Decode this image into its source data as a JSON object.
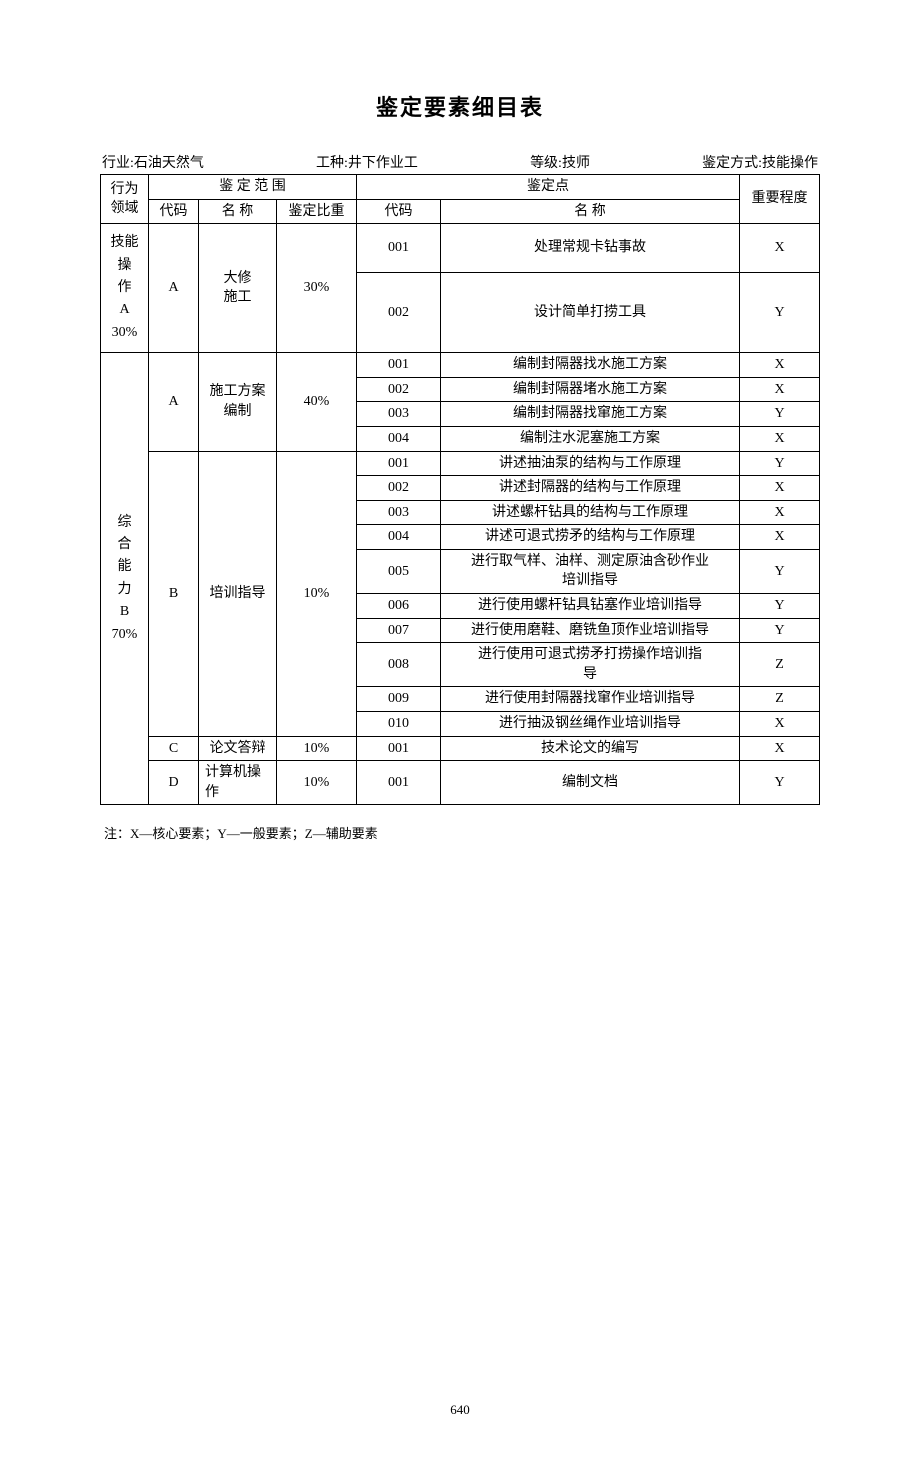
{
  "title": "鉴定要素细目表",
  "meta": {
    "industry_label": "行业:石油天然气",
    "job_label": "工种:井下作业工",
    "level_label": "等级:技师",
    "method_label": "鉴定方式:技能操作"
  },
  "headers": {
    "domain": "行为\n领域",
    "scope": "鉴 定 范 围",
    "code": "代码",
    "name": "名 称",
    "weight": "鉴定比重",
    "point": "鉴定点",
    "point_code": "代码",
    "point_name": "名  称",
    "priority": "重要程度"
  },
  "domain_a": {
    "label": "技能操\n作\nA\n30%",
    "section": {
      "code": "A",
      "name": "大修\n施工",
      "weight": "30%",
      "rows": [
        {
          "code": "001",
          "name": "处理常规卡钻事故",
          "priority": "X"
        },
        {
          "code": "002",
          "name": "设计简单打捞工具",
          "priority": "Y"
        }
      ]
    }
  },
  "domain_b": {
    "label": "综\n合\n能\n力\nB\n70%",
    "sections": [
      {
        "code": "A",
        "name": "施工方案\n编制",
        "weight": "40%",
        "rows": [
          {
            "code": "001",
            "name": "编制封隔器找水施工方案",
            "priority": "X"
          },
          {
            "code": "002",
            "name": "编制封隔器堵水施工方案",
            "priority": "X"
          },
          {
            "code": "003",
            "name": "编制封隔器找窜施工方案",
            "priority": "Y"
          },
          {
            "code": "004",
            "name": "编制注水泥塞施工方案",
            "priority": "X"
          }
        ]
      },
      {
        "code": "B",
        "name": "培训指导",
        "weight": "10%",
        "rows": [
          {
            "code": "001",
            "name": "讲述抽油泵的结构与工作原理",
            "priority": "Y"
          },
          {
            "code": "002",
            "name": "讲述封隔器的结构与工作原理",
            "priority": "X"
          },
          {
            "code": "003",
            "name": "讲述螺杆钻具的结构与工作原理",
            "priority": "X"
          },
          {
            "code": "004",
            "name": "讲述可退式捞矛的结构与工作原理",
            "priority": "X"
          },
          {
            "code": "005",
            "name": "进行取气样、油样、测定原油含砂作业\n培训指导",
            "priority": "Y"
          },
          {
            "code": "006",
            "name": "进行使用螺杆钻具钻塞作业培训指导",
            "priority": "Y"
          },
          {
            "code": "007",
            "name": "进行使用磨鞋、磨铣鱼顶作业培训指导",
            "priority": "Y"
          },
          {
            "code": "008",
            "name": "进行使用可退式捞矛打捞操作培训指\n导",
            "priority": "Z"
          },
          {
            "code": "009",
            "name": "进行使用封隔器找窜作业培训指导",
            "priority": "Z"
          },
          {
            "code": "010",
            "name": "进行抽汲钢丝绳作业培训指导",
            "priority": "X"
          }
        ]
      },
      {
        "code": "C",
        "name": "论文答辩",
        "weight": "10%",
        "rows": [
          {
            "code": "001",
            "name": "技术论文的编写",
            "priority": "X"
          }
        ]
      },
      {
        "code": "D",
        "name": "计算机操\n作",
        "weight": "10%",
        "rows": [
          {
            "code": "001",
            "name": "编制文档",
            "priority": "Y"
          }
        ]
      }
    ]
  },
  "note": "注：X—核心要素；Y—一般要素；Z—辅助要素",
  "page_number": "640",
  "colors": {
    "text": "#000000",
    "background": "#ffffff",
    "border": "#000000"
  },
  "typography": {
    "title_fontsize": 22,
    "body_fontsize": 14,
    "note_fontsize": 13
  }
}
